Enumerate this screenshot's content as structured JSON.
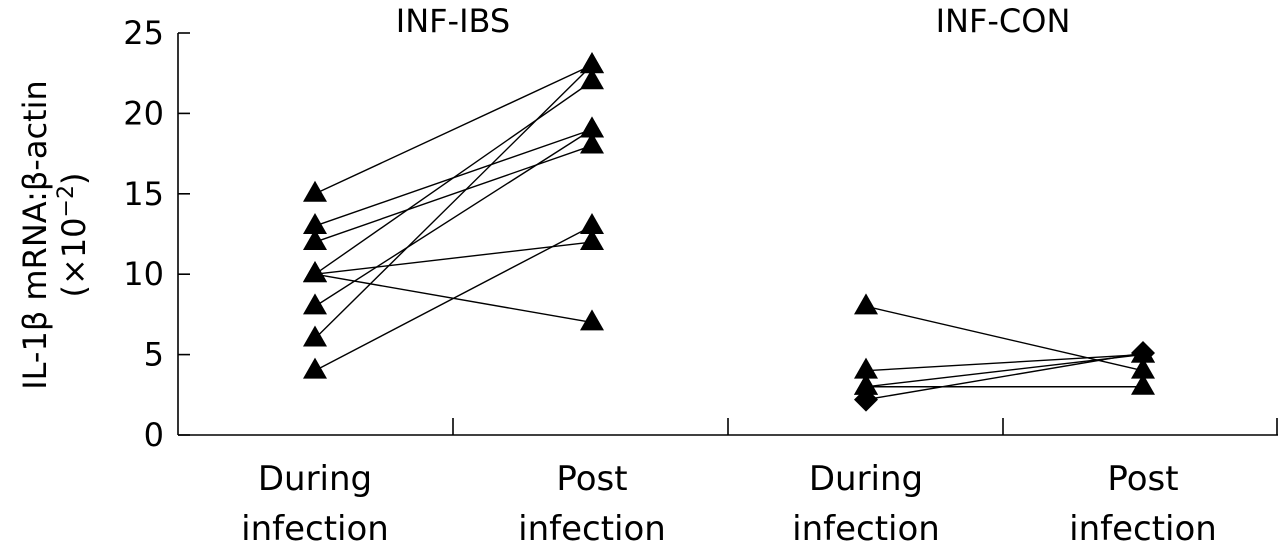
{
  "chart_data": {
    "type": "scatter",
    "ylabel_line1": "IL-1β mRNA:β-actin",
    "ylabel_line2_prefix": "(×10",
    "ylabel_line2_exp": "−2",
    "ylabel_line2_suffix": ")",
    "ylim": [
      0,
      25
    ],
    "yticks": [
      "0",
      "5",
      "10",
      "15",
      "20",
      "25"
    ],
    "grid": false,
    "groups": [
      {
        "title": "INF-IBS",
        "categories": [
          [
            "During",
            "infection"
          ],
          [
            "Post",
            "infection"
          ]
        ],
        "marker": "triangle",
        "pairs": [
          [
            15,
            23
          ],
          [
            13,
            19
          ],
          [
            12,
            18
          ],
          [
            10,
            22
          ],
          [
            10,
            12
          ],
          [
            10,
            7
          ],
          [
            8,
            19
          ],
          [
            6,
            23
          ],
          [
            4,
            13
          ]
        ]
      },
      {
        "title": "INF-CON",
        "categories": [
          [
            "During",
            "infection"
          ],
          [
            "Post",
            "infection"
          ]
        ],
        "marker": "triangle",
        "diamond_points": [
          [
            0,
            2.2
          ],
          [
            1,
            5.1
          ]
        ],
        "pairs": [
          [
            8,
            4
          ],
          [
            4,
            5
          ],
          [
            3,
            3
          ],
          [
            3,
            5
          ],
          [
            2.2,
            5.1
          ]
        ]
      }
    ]
  }
}
